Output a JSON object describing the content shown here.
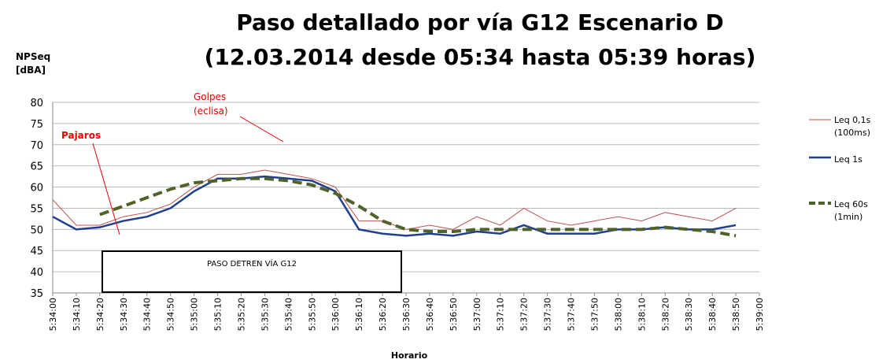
{
  "chart_data": {
    "type": "line",
    "title": "Paso detallado por vía G12 Escenario D",
    "subtitle": "(12.03.2014 desde 05:34 hasta 05:39 horas)",
    "y_label": "NPSeq [dBA]",
    "x_label": "Horario",
    "annotations": [
      "Pajaros",
      "Golpes",
      "(eclisa)",
      "PASO DETREN VÍA G12"
    ],
    "categories": [
      "5:34:00",
      "5:34:10",
      "5:34:20",
      "5:34:30",
      "5:34:40",
      "5:34:50",
      "5:35:00",
      "5:35:10",
      "5:35:20",
      "5:35:30",
      "5:35:40",
      "5:35:50",
      "5:36:00",
      "5:36:10",
      "5:36:20",
      "5:36:30",
      "5:36:40",
      "5:36:50",
      "5:37:00",
      "5:37:10",
      "5:37:20",
      "5:37:30",
      "5:37:40",
      "5:37:50",
      "5:38:00",
      "5:38:10",
      "5:38:20",
      "5:38:30",
      "5:38:40",
      "5:38:50",
      "5:39:00"
    ],
    "series": [
      {
        "name": "Leq 0,1s (100ms)",
        "color": "#c0504d",
        "values": [
          57,
          51,
          51,
          53,
          54,
          56,
          60,
          63,
          63,
          64,
          63,
          62,
          60,
          52,
          52,
          50,
          51,
          50,
          53,
          51,
          55,
          52,
          51,
          52,
          53,
          52,
          54,
          53,
          52,
          55,
          null
        ]
      },
      {
        "name": "Leq 1s",
        "color": "#1f3f8f",
        "values": [
          53,
          50,
          50.5,
          52,
          53,
          55,
          59,
          62,
          62,
          62.5,
          62,
          61.5,
          59,
          50,
          49,
          48.5,
          49,
          48.5,
          49.5,
          49,
          51,
          49,
          49,
          49,
          50,
          50,
          50.5,
          50,
          50,
          51,
          null
        ]
      },
      {
        "name": "Leq 60s (1min)",
        "color": "#4f6228",
        "dashed": true,
        "values": [
          null,
          null,
          53.5,
          55.5,
          57.5,
          59.5,
          61,
          61.5,
          62,
          62,
          61.5,
          60.5,
          58.5,
          55.5,
          52,
          50,
          49.5,
          49.5,
          50,
          50,
          50,
          50,
          50,
          50,
          50,
          50,
          50.5,
          50,
          49.5,
          48.5,
          null
        ]
      }
    ],
    "ylim": [
      35,
      80
    ],
    "yticks": [
      35,
      40,
      45,
      50,
      55,
      60,
      65,
      70,
      75,
      80
    ],
    "grid": true
  }
}
